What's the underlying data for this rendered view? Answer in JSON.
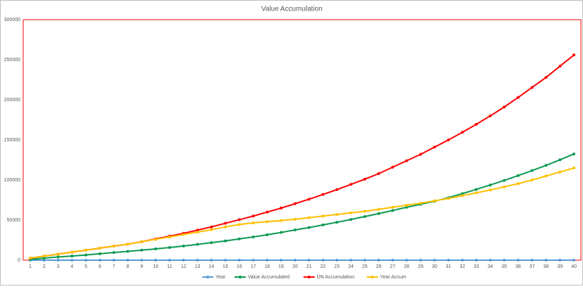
{
  "chart_data": {
    "type": "line",
    "title": "Value Accumulation",
    "categories": [
      "1",
      "2",
      "3",
      "4",
      "5",
      "6",
      "7",
      "8",
      "9",
      "10",
      "11",
      "12",
      "13",
      "14",
      "15",
      "16",
      "17",
      "18",
      "19",
      "20",
      "21",
      "22",
      "23",
      "24",
      "25",
      "26",
      "27",
      "28",
      "29",
      "30",
      "31",
      "32",
      "33",
      "34",
      "35",
      "36",
      "37",
      "38",
      "39",
      "40"
    ],
    "series": [
      {
        "name": "Year",
        "color": "#5b9bd5",
        "values": [
          1,
          2,
          3,
          4,
          5,
          6,
          7,
          8,
          9,
          10,
          11,
          12,
          13,
          14,
          15,
          16,
          17,
          18,
          19,
          20,
          21,
          22,
          23,
          24,
          25,
          26,
          27,
          28,
          29,
          30,
          31,
          32,
          33,
          34,
          35,
          36,
          37,
          38,
          39,
          40
        ]
      },
      {
        "name": "Value Accumulated",
        "color": "#0a9a50",
        "values": [
          1000,
          2500,
          4000,
          5200,
          6500,
          8000,
          9500,
          11000,
          12500,
          14000,
          15800,
          17700,
          19700,
          21800,
          24000,
          26500,
          29000,
          31700,
          34600,
          37700,
          40700,
          44000,
          47300,
          50800,
          54400,
          58100,
          62000,
          66000,
          69700,
          73500,
          78000,
          83000,
          88300,
          93800,
          99500,
          105500,
          111800,
          118300,
          125200,
          132500
        ]
      },
      {
        "name": "DN Accumulation",
        "color": "#ff0000",
        "values": [
          2500,
          5000,
          7500,
          10000,
          12500,
          15000,
          17500,
          20000,
          23000,
          26500,
          30000,
          33500,
          37500,
          41500,
          46000,
          50500,
          55000,
          60000,
          65000,
          70500,
          76000,
          82000,
          88000,
          94500,
          101000,
          108000,
          116000,
          124000,
          132000,
          141000,
          150000,
          159500,
          169500,
          180000,
          191000,
          203000,
          215500,
          228000,
          242000,
          256000
        ]
      },
      {
        "name": "Year Accum",
        "color": "#ffc000",
        "values": [
          2500,
          5000,
          7500,
          10000,
          12500,
          15000,
          17500,
          20000,
          23000,
          26000,
          29000,
          32000,
          35000,
          38000,
          41500,
          44500,
          46500,
          48000,
          49500,
          51000,
          53000,
          55000,
          57000,
          59000,
          61000,
          63500,
          66000,
          68500,
          71000,
          74000,
          77000,
          80500,
          84000,
          87500,
          91500,
          95500,
          100000,
          105000,
          110000,
          115000
        ]
      }
    ],
    "ylim": [
      0,
      300000
    ],
    "yticks": [
      0,
      50000,
      100000,
      150000,
      200000,
      250000,
      300000
    ]
  }
}
